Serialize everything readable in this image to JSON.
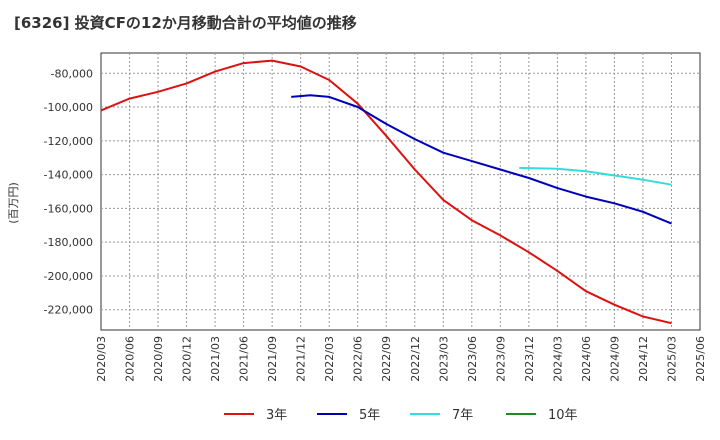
{
  "chart_data": {
    "type": "line",
    "title": "[6326]  投資CFの12か月移動合計の平均値の推移",
    "ylabel": "(百万円)",
    "xlabel": "",
    "x_ticks": [
      "2020/03",
      "2020/06",
      "2020/09",
      "2020/12",
      "2021/03",
      "2021/06",
      "2021/09",
      "2021/12",
      "2022/03",
      "2022/06",
      "2022/09",
      "2022/12",
      "2023/03",
      "2023/06",
      "2023/09",
      "2023/12",
      "2024/03",
      "2024/06",
      "2024/09",
      "2024/12",
      "2025/03",
      "2025/06"
    ],
    "y_ticks": [
      -80000,
      -100000,
      -120000,
      -140000,
      -160000,
      -180000,
      -200000,
      -220000
    ],
    "y_tick_labels": [
      "-80,000",
      "-100,000",
      "-120,000",
      "-140,000",
      "-160,000",
      "-180,000",
      "-200,000",
      "-220,000"
    ],
    "ylim": [
      -232000,
      -68000
    ],
    "grid": true,
    "legend_position": "bottom",
    "series": [
      {
        "name": "3年",
        "color": "#dd1111",
        "points": [
          [
            "2020/03",
            -102000
          ],
          [
            "2020/06",
            -95000
          ],
          [
            "2020/09",
            -91000
          ],
          [
            "2020/12",
            -86000
          ],
          [
            "2021/03",
            -79000
          ],
          [
            "2021/06",
            -74000
          ],
          [
            "2021/09",
            -72500
          ],
          [
            "2021/12",
            -76000
          ],
          [
            "2022/03",
            -84000
          ],
          [
            "2022/06",
            -98000
          ],
          [
            "2022/09",
            -117000
          ],
          [
            "2022/12",
            -137000
          ],
          [
            "2023/03",
            -155000
          ],
          [
            "2023/06",
            -167000
          ],
          [
            "2023/09",
            -176000
          ],
          [
            "2023/12",
            -186000
          ],
          [
            "2024/03",
            -197000
          ],
          [
            "2024/06",
            -209000
          ],
          [
            "2024/09",
            -217000
          ],
          [
            "2024/12",
            -224000
          ],
          [
            "2025/03",
            -228000
          ]
        ]
      },
      {
        "name": "5年",
        "color": "#0000bb",
        "points": [
          [
            "2021/11",
            -94000
          ],
          [
            "2022/01",
            -93000
          ],
          [
            "2022/03",
            -94000
          ],
          [
            "2022/06",
            -100000
          ],
          [
            "2022/09",
            -110000
          ],
          [
            "2022/12",
            -119000
          ],
          [
            "2023/03",
            -127000
          ],
          [
            "2023/06",
            -132000
          ],
          [
            "2023/09",
            -137000
          ],
          [
            "2023/12",
            -142000
          ],
          [
            "2024/03",
            -148000
          ],
          [
            "2024/06",
            -153000
          ],
          [
            "2024/09",
            -157000
          ],
          [
            "2024/12",
            -162000
          ],
          [
            "2025/03",
            -169000
          ]
        ]
      },
      {
        "name": "7年",
        "color": "#33dddd",
        "points": [
          [
            "2023/11",
            -136000
          ],
          [
            "2024/03",
            -136500
          ],
          [
            "2024/06",
            -138000
          ],
          [
            "2024/09",
            -140500
          ],
          [
            "2024/12",
            -143000
          ],
          [
            "2025/03",
            -146000
          ]
        ]
      },
      {
        "name": "10年",
        "color": "#228822",
        "points": []
      }
    ]
  }
}
